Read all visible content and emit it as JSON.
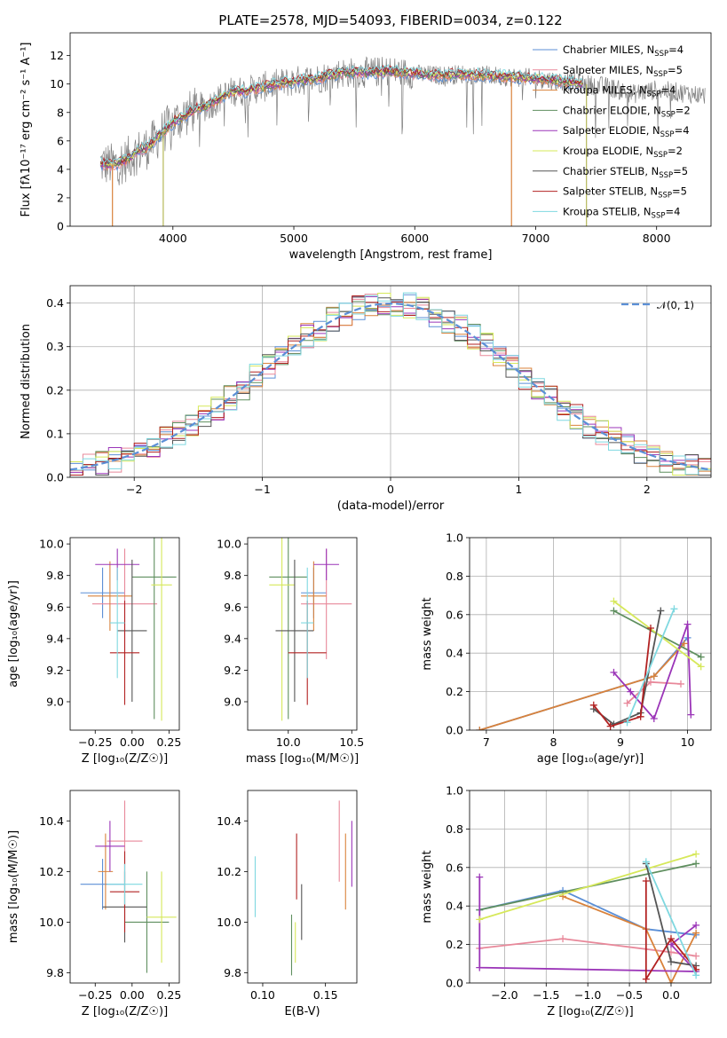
{
  "figure": {
    "title": "PLATE=2578, MJD=54093, FIBERID=0034, z=0.122"
  },
  "models": [
    {
      "name": "Chabrier MILES",
      "nssp": "4",
      "color": "#5b8fd6"
    },
    {
      "name": "Salpeter MILES",
      "nssp": "5",
      "color": "#e8889a"
    },
    {
      "name": "Kroupa MILES",
      "nssp": "4",
      "color": "#d9823b"
    },
    {
      "name": "Chabrier ELODIE",
      "nssp": "2",
      "color": "#5f8f5f"
    },
    {
      "name": "Salpeter ELODIE",
      "nssp": "4",
      "color": "#9b35b8"
    },
    {
      "name": "Kroupa ELODIE",
      "nssp": "2",
      "color": "#d6e85a"
    },
    {
      "name": "Chabrier STELIB",
      "nssp": "5",
      "color": "#555555"
    },
    {
      "name": "Salpeter STELIB",
      "nssp": "5",
      "color": "#b22222"
    },
    {
      "name": "Kroupa STELIB",
      "nssp": "4",
      "color": "#7fd8e0"
    }
  ],
  "chart_data": [
    {
      "id": "spectrum",
      "type": "line",
      "xlabel": "wavelength [Angstrom, rest frame]",
      "ylabel": "Flux [fλ10⁻¹⁷ erg cm⁻² s⁻¹ A⁻¹]",
      "xlim": [
        3150,
        8450
      ],
      "ylim": [
        0,
        13.6
      ],
      "xticks": [
        4000,
        5000,
        6000,
        7000,
        8000
      ],
      "yticks": [
        0,
        2,
        4,
        6,
        8,
        10,
        12
      ],
      "legend": "top-right",
      "legend_entries": [
        "Chabrier MILES, N_SSP=4",
        "Salpeter MILES, N_SSP=5",
        "Kroupa MILES, N_SSP=4",
        "Chabrier ELODIE, N_SSP=2",
        "Salpeter ELODIE, N_SSP=4",
        "Kroupa ELODIE, N_SSP=2",
        "Chabrier STELIB, N_SSP=5",
        "Salpeter STELIB, N_SSP=5",
        "Kroupa STELIB, N_SSP=4"
      ],
      "data_continuum": {
        "x": [
          3400,
          3500,
          3600,
          3700,
          3800,
          3900,
          4000,
          4100,
          4200,
          4300,
          4400,
          4500,
          4600,
          4800,
          5000,
          5200,
          5400,
          5600,
          5800,
          6000,
          6200,
          6400,
          6600,
          6800,
          7000,
          7200,
          7400,
          7600,
          7800,
          8000,
          8200,
          8400
        ],
        "y": [
          4.4,
          4.3,
          4.6,
          5.2,
          5.6,
          6.5,
          7.3,
          7.8,
          8.3,
          8.5,
          9.1,
          9.5,
          9.5,
          9.9,
          10.2,
          10.4,
          10.8,
          10.8,
          10.9,
          10.7,
          10.6,
          10.7,
          10.6,
          10.5,
          10.4,
          10.2,
          10.0,
          9.8,
          9.3,
          9.6,
          9.4,
          9.2
        ]
      },
      "drops_x": [
        3500,
        3920,
        6800,
        7420
      ]
    },
    {
      "id": "residuals",
      "type": "histogram",
      "xlabel": "(data-model)/error",
      "ylabel": "Normed distribution",
      "xlim": [
        -2.5,
        2.5
      ],
      "ylim": [
        0,
        0.44
      ],
      "xticks": [
        -2,
        -1,
        0,
        1,
        2
      ],
      "yticks": [
        0.0,
        0.1,
        0.2,
        0.3,
        0.4
      ],
      "grid": true,
      "legend": "top-right",
      "gauss_label": "𝒩(0, 1)",
      "bin_width": 0.1
    },
    {
      "id": "age-vs-z",
      "type": "scatter",
      "xlabel": "Z [log₁₀(Z/Z☉)]",
      "ylabel": "age  [log₁₀(age/yr)]",
      "xlim": [
        -0.42,
        0.32
      ],
      "ylim": [
        8.82,
        10.04
      ],
      "xticks": [
        -0.25,
        0.0,
        0.25
      ],
      "xticklabels": [
        "−0.25",
        "0.00",
        "0.25"
      ],
      "yticks": [
        9.0,
        9.2,
        9.4,
        9.6,
        9.8,
        10.0
      ],
      "points": [
        {
          "model": 0,
          "x": -0.2,
          "y": 9.69,
          "xerr": 0.15,
          "yerr": 0.16
        },
        {
          "model": 1,
          "x": -0.05,
          "y": 9.62,
          "xerr": 0.22,
          "yerr": 0.35
        },
        {
          "model": 2,
          "x": -0.15,
          "y": 9.67,
          "xerr": 0.15,
          "yerr": 0.22
        },
        {
          "model": 3,
          "x": 0.15,
          "y": 9.79,
          "xerr": 0.15,
          "yerr": 0.9
        },
        {
          "model": 4,
          "x": -0.1,
          "y": 9.87,
          "xerr": 0.15,
          "yerr": 0.1
        },
        {
          "model": 5,
          "x": 0.2,
          "y": 9.74,
          "xerr": 0.07,
          "yerr": 0.86
        },
        {
          "model": 6,
          "x": 0.0,
          "y": 9.45,
          "xerr": 0.1,
          "yerr": 0.45
        },
        {
          "model": 7,
          "x": -0.05,
          "y": 9.31,
          "xerr": 0.1,
          "yerr": 0.33
        },
        {
          "model": 8,
          "x": -0.1,
          "y": 9.5,
          "xerr": 0.05,
          "yerr": 0.35
        }
      ]
    },
    {
      "id": "age-vs-mass",
      "type": "scatter",
      "xlabel": "mass [log₁₀(M/M☉)]",
      "ylabel": "",
      "xlim": [
        9.68,
        10.54
      ],
      "ylim": [
        8.82,
        10.04
      ],
      "xticks": [
        10.0,
        10.5
      ],
      "yticks": [
        9.0,
        9.2,
        9.4,
        9.6,
        9.8,
        10.0
      ],
      "points": [
        {
          "model": 0,
          "x": 10.2,
          "y": 9.69,
          "xerr": 0.1,
          "yerr": 0.16
        },
        {
          "model": 1,
          "x": 10.3,
          "y": 9.62,
          "xerr": 0.2,
          "yerr": 0.35
        },
        {
          "model": 2,
          "x": 10.2,
          "y": 9.67,
          "xerr": 0.1,
          "yerr": 0.22
        },
        {
          "model": 3,
          "x": 10.0,
          "y": 9.79,
          "xerr": 0.15,
          "yerr": 0.9
        },
        {
          "model": 4,
          "x": 10.3,
          "y": 9.87,
          "xerr": 0.1,
          "yerr": 0.1
        },
        {
          "model": 5,
          "x": 9.95,
          "y": 9.74,
          "xerr": 0.1,
          "yerr": 0.86
        },
        {
          "model": 6,
          "x": 10.05,
          "y": 9.45,
          "xerr": 0.15,
          "yerr": 0.45
        },
        {
          "model": 7,
          "x": 10.15,
          "y": 9.31,
          "xerr": 0.15,
          "yerr": 0.33
        },
        {
          "model": 8,
          "x": 10.15,
          "y": 9.5,
          "xerr": 0.05,
          "yerr": 0.35
        }
      ]
    },
    {
      "id": "weight-vs-age",
      "type": "line",
      "xlabel": "age  [log₁₀(age/yr)]",
      "ylabel": "mass weight",
      "xlim": [
        6.75,
        10.35
      ],
      "ylim": [
        0,
        1.0
      ],
      "xticks": [
        7,
        8,
        9,
        10
      ],
      "yticks": [
        0.0,
        0.2,
        0.4,
        0.6,
        0.8,
        1.0
      ],
      "grid": true,
      "series": [
        {
          "model": 0,
          "x": [
            6.9,
            9.5,
            10.0
          ],
          "y": [
            0.0,
            0.28,
            0.48
          ]
        },
        {
          "model": 1,
          "x": [
            9.1,
            9.45,
            9.9
          ],
          "y": [
            0.14,
            0.25,
            0.24
          ]
        },
        {
          "model": 2,
          "x": [
            6.9,
            9.5,
            9.95
          ],
          "y": [
            0.0,
            0.28,
            0.45
          ]
        },
        {
          "model": 3,
          "x": [
            8.9,
            10.2
          ],
          "y": [
            0.62,
            0.38
          ]
        },
        {
          "model": 4,
          "x": [
            8.9,
            9.15,
            9.5,
            10.0,
            10.05
          ],
          "y": [
            0.3,
            0.2,
            0.06,
            0.55,
            0.08
          ]
        },
        {
          "model": 5,
          "x": [
            8.9,
            10.2
          ],
          "y": [
            0.67,
            0.33
          ]
        },
        {
          "model": 6,
          "x": [
            8.6,
            8.9,
            9.3,
            9.6
          ],
          "y": [
            0.11,
            0.03,
            0.09,
            0.62
          ]
        },
        {
          "model": 7,
          "x": [
            8.6,
            8.85,
            9.3,
            9.45
          ],
          "y": [
            0.13,
            0.02,
            0.07,
            0.53
          ]
        },
        {
          "model": 8,
          "x": [
            9.1,
            9.8
          ],
          "y": [
            0.04,
            0.63
          ]
        }
      ]
    },
    {
      "id": "mass-vs-z",
      "type": "scatter",
      "xlabel": "Z [log₁₀(Z/Z☉)]",
      "ylabel": "mass [log₁₀(M/M☉)]",
      "xlim": [
        -0.42,
        0.32
      ],
      "ylim": [
        9.76,
        10.52
      ],
      "xticks": [
        -0.25,
        0.0,
        0.25
      ],
      "xticklabels": [
        "−0.25",
        "0.00",
        "0.25"
      ],
      "yticks": [
        9.8,
        10.0,
        10.2,
        10.4
      ],
      "points": [
        {
          "model": 0,
          "x": -0.2,
          "y": 10.15,
          "xerr": 0.15,
          "yerr": 0.1
        },
        {
          "model": 1,
          "x": -0.05,
          "y": 10.32,
          "xerr": 0.12,
          "yerr": 0.16
        },
        {
          "model": 2,
          "x": -0.18,
          "y": 10.2,
          "xerr": 0.05,
          "yerr": 0.15
        },
        {
          "model": 3,
          "x": 0.1,
          "y": 10.0,
          "xerr": 0.15,
          "yerr": 0.2
        },
        {
          "model": 4,
          "x": -0.15,
          "y": 10.3,
          "xerr": 0.1,
          "yerr": 0.1
        },
        {
          "model": 5,
          "x": 0.2,
          "y": 10.02,
          "xerr": 0.1,
          "yerr": 0.18
        },
        {
          "model": 6,
          "x": -0.05,
          "y": 10.06,
          "xerr": 0.15,
          "yerr": 0.14
        },
        {
          "model": 7,
          "x": -0.05,
          "y": 10.12,
          "xerr": 0.1,
          "yerr": 0.16
        },
        {
          "model": 8,
          "x": -0.05,
          "y": 10.15,
          "xerr": 0.12,
          "yerr": 0.08
        }
      ]
    },
    {
      "id": "mass-vs-ebv",
      "type": "scatter",
      "xlabel": "E(B-V)",
      "ylabel": "",
      "xlim": [
        0.088,
        0.175
      ],
      "ylim": [
        9.76,
        10.52
      ],
      "xticks": [
        0.1,
        0.15
      ],
      "xticklabels": [
        "0.10",
        "0.15"
      ],
      "yticks": [
        9.8,
        10.0,
        10.2,
        10.4
      ],
      "points": [
        {
          "model": 1,
          "x": 0.161,
          "y": 10.32,
          "xerr": 0,
          "yerr": 0.16
        },
        {
          "model": 2,
          "x": 0.166,
          "y": 10.2,
          "xerr": 0,
          "yerr": 0.15
        },
        {
          "model": 3,
          "x": 0.123,
          "y": 9.91,
          "xerr": 0,
          "yerr": 0.12
        },
        {
          "model": 4,
          "x": 0.171,
          "y": 10.27,
          "xerr": 0,
          "yerr": 0.13
        },
        {
          "model": 5,
          "x": 0.126,
          "y": 9.92,
          "xerr": 0,
          "yerr": 0.08
        },
        {
          "model": 6,
          "x": 0.131,
          "y": 10.04,
          "xerr": 0,
          "yerr": 0.11
        },
        {
          "model": 7,
          "x": 0.127,
          "y": 10.22,
          "xerr": 0,
          "yerr": 0.13
        },
        {
          "model": 8,
          "x": 0.094,
          "y": 10.14,
          "xerr": 0,
          "yerr": 0.12
        }
      ]
    },
    {
      "id": "weight-vs-z",
      "type": "line",
      "xlabel": "Z [log₁₀(Z/Z☉)]",
      "ylabel": "mass weight",
      "xlim": [
        -2.42,
        0.48
      ],
      "ylim": [
        0,
        1.0
      ],
      "xticks": [
        -2.0,
        -1.5,
        -1.0,
        -0.5,
        0.0
      ],
      "xticklabels": [
        "−2.0",
        "−1.5",
        "−1.0",
        "−0.5",
        "0.0"
      ],
      "yticks": [
        0.0,
        0.2,
        0.4,
        0.6,
        0.8,
        1.0
      ],
      "grid": true,
      "series": [
        {
          "model": 0,
          "x": [
            -2.3,
            -1.3,
            -0.3,
            0.3
          ],
          "y": [
            0.38,
            0.48,
            0.28,
            0.25
          ]
        },
        {
          "model": 1,
          "x": [
            -2.3,
            -1.3,
            0.0,
            0.3
          ],
          "y": [
            0.18,
            0.23,
            0.16,
            0.14
          ]
        },
        {
          "model": 2,
          "x": [
            -1.3,
            -0.3,
            0.0,
            0.3
          ],
          "y": [
            0.45,
            0.28,
            0.0,
            0.26
          ]
        },
        {
          "model": 3,
          "x": [
            -2.3,
            0.3
          ],
          "y": [
            0.38,
            0.62
          ]
        },
        {
          "model": 4,
          "x": [
            -2.3,
            -2.3,
            0.3,
            0.0,
            0.3
          ],
          "y": [
            0.55,
            0.08,
            0.06,
            0.2,
            0.3
          ]
        },
        {
          "model": 5,
          "x": [
            -2.3,
            0.3
          ],
          "y": [
            0.33,
            0.67
          ]
        },
        {
          "model": 6,
          "x": [
            -0.3,
            0.0,
            0.3
          ],
          "y": [
            0.62,
            0.11,
            0.09
          ]
        },
        {
          "model": 7,
          "x": [
            -0.3,
            -0.3,
            0.0,
            0.3
          ],
          "y": [
            0.53,
            0.02,
            0.23,
            0.07
          ]
        },
        {
          "model": 8,
          "x": [
            -0.3,
            0.3
          ],
          "y": [
            0.63,
            0.04
          ]
        }
      ]
    }
  ]
}
